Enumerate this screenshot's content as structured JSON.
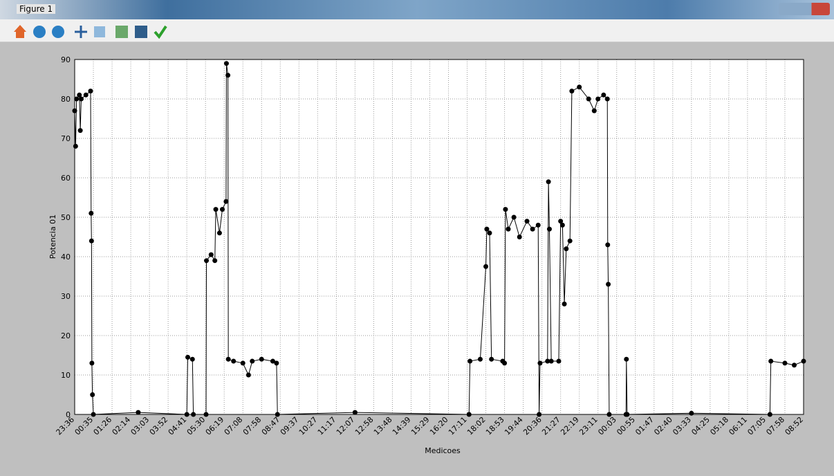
{
  "window": {
    "title": "Figure 1"
  },
  "chart_data": {
    "type": "line",
    "x_label": "Medicoes",
    "y_label": "Potencia 01",
    "x": [
      0,
      0.05,
      0.1,
      0.25,
      0.3,
      0.35,
      0.6,
      0.85,
      0.88,
      0.9,
      0.92,
      0.95,
      1.0,
      3.4,
      6.0,
      6.05,
      6.3,
      6.35,
      7.03,
      7.05,
      7.3,
      7.5,
      7.55,
      7.75,
      7.9,
      8.1,
      8.12,
      8.2,
      8.22,
      8.5,
      9.0,
      9.3,
      9.5,
      10.0,
      10.6,
      10.8,
      10.85,
      15.0,
      21.1,
      21.15,
      21.7,
      22.0,
      22.05,
      22.2,
      22.3,
      22.9,
      23.0,
      23.05,
      23.2,
      23.5,
      23.8,
      24.2,
      24.5,
      24.8,
      24.85,
      24.9,
      25.3,
      25.35,
      25.4,
      25.5,
      25.9,
      26.0,
      26.1,
      26.2,
      26.3,
      26.5,
      26.6,
      27.0,
      27.5,
      27.8,
      28.0,
      28.3,
      28.5,
      28.52,
      28.55,
      28.6,
      29.5,
      29.52,
      29.56,
      33.0,
      37.2,
      37.25,
      38.0,
      38.5,
      39.0
    ],
    "series": [
      {
        "color": "#000000",
        "values": [
          77,
          68,
          80,
          81,
          72,
          80,
          81,
          82,
          51,
          44,
          13,
          5,
          0,
          0.5,
          0,
          14.5,
          14,
          0,
          0,
          39,
          40.5,
          39,
          52,
          46,
          52,
          54,
          89,
          86,
          14,
          13.5,
          13,
          10,
          13.5,
          14,
          13.5,
          13,
          0,
          0.5,
          0,
          13.5,
          14,
          37.5,
          47,
          46,
          14,
          13.5,
          13,
          52,
          47,
          50,
          45,
          49,
          47,
          48,
          0,
          13,
          13.5,
          59,
          47,
          13.5,
          13.5,
          49,
          48,
          28,
          42,
          44,
          82,
          83,
          80,
          77,
          80,
          81,
          80,
          43,
          33,
          0,
          0,
          14,
          0,
          0.3,
          0,
          13.5,
          13,
          12.5,
          13.5
        ]
      }
    ],
    "xlim": [
      0,
      39
    ],
    "xticks": [
      {
        "value": 0,
        "label": "23:36"
      },
      {
        "value": 1,
        "label": "00:35"
      },
      {
        "value": 2,
        "label": "01:26"
      },
      {
        "value": 3,
        "label": "02:14"
      },
      {
        "value": 4,
        "label": "03:03"
      },
      {
        "value": 5,
        "label": "03:52"
      },
      {
        "value": 6,
        "label": "04:41"
      },
      {
        "value": 7,
        "label": "05:30"
      },
      {
        "value": 8,
        "label": "06:19"
      },
      {
        "value": 9,
        "label": "07:08"
      },
      {
        "value": 10,
        "label": "07:58"
      },
      {
        "value": 11,
        "label": "08:47"
      },
      {
        "value": 12,
        "label": "09:37"
      },
      {
        "value": 13,
        "label": "10:27"
      },
      {
        "value": 14,
        "label": "11:17"
      },
      {
        "value": 15,
        "label": "12:07"
      },
      {
        "value": 16,
        "label": "12:58"
      },
      {
        "value": 17,
        "label": "13:48"
      },
      {
        "value": 18,
        "label": "14:39"
      },
      {
        "value": 19,
        "label": "15:29"
      },
      {
        "value": 20,
        "label": "16:20"
      },
      {
        "value": 21,
        "label": "17:11"
      },
      {
        "value": 22,
        "label": "18:02"
      },
      {
        "value": 23,
        "label": "18:53"
      },
      {
        "value": 24,
        "label": "19:44"
      },
      {
        "value": 25,
        "label": "20:36"
      },
      {
        "value": 26,
        "label": "21:27"
      },
      {
        "value": 27,
        "label": "22:19"
      },
      {
        "value": 28,
        "label": "23:11"
      },
      {
        "value": 29,
        "label": "00:03"
      },
      {
        "value": 30,
        "label": "00:55"
      },
      {
        "value": 31,
        "label": "01:47"
      },
      {
        "value": 32,
        "label": "02:40"
      },
      {
        "value": 33,
        "label": "03:33"
      },
      {
        "value": 34,
        "label": "04:25"
      },
      {
        "value": 35,
        "label": "05:18"
      },
      {
        "value": 36,
        "label": "06:11"
      },
      {
        "value": 37,
        "label": "07:05"
      },
      {
        "value": 38,
        "label": "07:58"
      },
      {
        "value": 39,
        "label": "08:52"
      }
    ],
    "ylim": [
      0,
      90
    ],
    "yticks": [
      0,
      10,
      20,
      30,
      40,
      50,
      60,
      70,
      80,
      90
    ],
    "grid": true
  }
}
